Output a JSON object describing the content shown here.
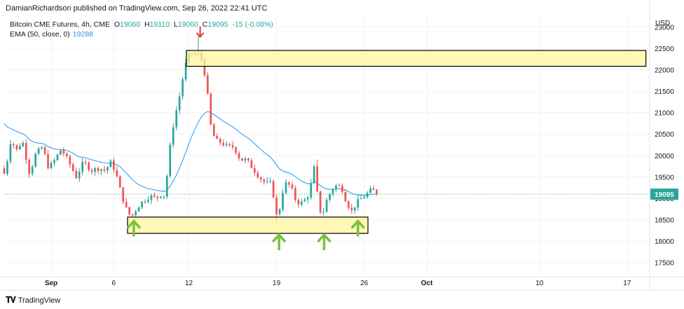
{
  "header": {
    "publisher": "DamianRichardson published on TradingView.com, Sep 26, 2022 22:41 UTC"
  },
  "legend": {
    "symbol": "Bitcoin CME Futures, 4h, CME",
    "o_label": "O",
    "o": "19060",
    "h_label": "H",
    "h": "19110",
    "l_label": "L",
    "l": "19060",
    "c_label": "C",
    "c": "19095",
    "change": "-15 (-0.08%)",
    "ema_label": "EMA (50, close, 0)",
    "ema_value": "19288"
  },
  "footer": {
    "brand": "TradingView",
    "logo_icon": "tradingview-logo-icon"
  },
  "colors": {
    "up": "#26a69a",
    "down": "#ef5350",
    "ema": "#2196f3",
    "zone": "#fff59d",
    "arrow_up": "#7cbf3a",
    "arrow_down": "#e53935"
  },
  "chart_data": {
    "type": "candlestick",
    "currency": "USD",
    "y_ticks": [
      "23000",
      "22500",
      "22000",
      "21500",
      "21000",
      "20500",
      "20000",
      "19500",
      "19000",
      "18500",
      "18000",
      "17500"
    ],
    "ylim": [
      17200,
      23300
    ],
    "x_ticks": [
      {
        "label": "Sep",
        "day": 1
      },
      {
        "label": "6",
        "day": 6
      },
      {
        "label": "12",
        "day": 12
      },
      {
        "label": "19",
        "day": 19
      },
      {
        "label": "26",
        "day": 26
      },
      {
        "label": "Oct",
        "day": 31
      },
      {
        "label": "10",
        "day": 40
      },
      {
        "label": "17",
        "day": 47
      }
    ],
    "last_price": "19095",
    "resistance_zone": {
      "day_start": 11.8,
      "day_end": 48.5,
      "low": 22080,
      "high": 22450
    },
    "support_zone": {
      "day_start": 7.1,
      "day_end": 26.3,
      "low": 18180,
      "high": 18560
    },
    "arrows": [
      {
        "dir": "down",
        "day": 12.9,
        "price": 22750
      },
      {
        "dir": "up",
        "day": 7.6,
        "price": 18500
      },
      {
        "dir": "up",
        "day": 19.2,
        "price": 18180
      },
      {
        "dir": "up",
        "day": 22.8,
        "price": 18180
      },
      {
        "dir": "up",
        "day": 25.5,
        "price": 18500
      }
    ],
    "anchors": [
      [
        -3,
        19700
      ],
      [
        -2.7,
        19550
      ],
      [
        -2.2,
        20400
      ],
      [
        -1.8,
        20100
      ],
      [
        -1.3,
        20350
      ],
      [
        -0.7,
        19550
      ],
      [
        -0.3,
        20000
      ],
      [
        0.3,
        20200
      ],
      [
        0.8,
        19700
      ],
      [
        1.3,
        19900
      ],
      [
        1.8,
        20150
      ],
      [
        2.4,
        19850
      ],
      [
        3.0,
        19500
      ],
      [
        3.6,
        19850
      ],
      [
        4.2,
        19650
      ],
      [
        4.8,
        19700
      ],
      [
        5.3,
        19650
      ],
      [
        5.8,
        19850
      ],
      [
        6.2,
        19550
      ],
      [
        6.6,
        19100
      ],
      [
        7.0,
        18750
      ],
      [
        7.4,
        18550
      ],
      [
        7.9,
        18800
      ],
      [
        8.4,
        18950
      ],
      [
        8.9,
        19050
      ],
      [
        9.4,
        19000
      ],
      [
        9.8,
        19100
      ],
      [
        10.1,
        19050
      ],
      [
        10.4,
        20000
      ],
      [
        10.8,
        20800
      ],
      [
        11.2,
        21300
      ],
      [
        11.6,
        21950
      ],
      [
        11.9,
        22300
      ],
      [
        12.2,
        22400
      ],
      [
        12.6,
        22350
      ],
      [
        12.9,
        22350
      ],
      [
        13.1,
        22150
      ],
      [
        13.4,
        21700
      ],
      [
        13.7,
        20750
      ],
      [
        14.1,
        20350
      ],
      [
        14.6,
        20300
      ],
      [
        15.1,
        20200
      ],
      [
        15.6,
        20200
      ],
      [
        16.1,
        19900
      ],
      [
        16.6,
        19900
      ],
      [
        17.1,
        19700
      ],
      [
        17.6,
        19500
      ],
      [
        18.1,
        19350
      ],
      [
        18.6,
        19350
      ],
      [
        19.0,
        18600
      ],
      [
        19.3,
        18800
      ],
      [
        19.6,
        19350
      ],
      [
        20.1,
        19300
      ],
      [
        20.6,
        18900
      ],
      [
        21.1,
        18900
      ],
      [
        21.6,
        19100
      ],
      [
        22.0,
        19700
      ],
      [
        22.3,
        19000
      ],
      [
        22.6,
        18550
      ],
      [
        23.0,
        18950
      ],
      [
        23.4,
        19200
      ],
      [
        23.8,
        19300
      ],
      [
        24.2,
        19250
      ],
      [
        24.6,
        18900
      ],
      [
        25.0,
        18700
      ],
      [
        25.4,
        18900
      ],
      [
        25.8,
        19000
      ],
      [
        26.2,
        19100
      ],
      [
        26.6,
        19200
      ],
      [
        26.9,
        19150
      ],
      [
        27.2,
        19095
      ]
    ]
  }
}
